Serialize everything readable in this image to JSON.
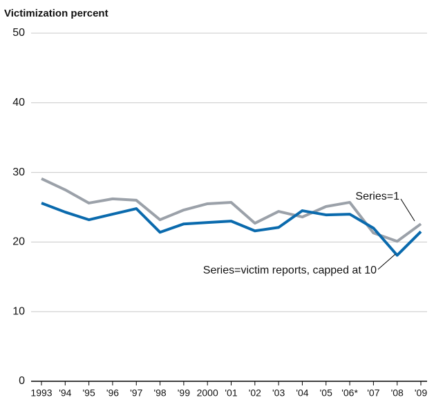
{
  "chart_data": {
    "type": "line",
    "title": "Victimization percent",
    "categories": [
      "1993",
      "'94",
      "'95",
      "'96",
      "'97",
      "'98",
      "'99",
      "2000",
      "'01",
      "'02",
      "'03",
      "'04",
      "'05",
      "'06*",
      "'07",
      "'08",
      "'09"
    ],
    "series": [
      {
        "name": "Series=1",
        "color": "#9ba1a9",
        "values": [
          29.1,
          27.5,
          25.6,
          26.2,
          26.0,
          23.2,
          24.6,
          25.5,
          25.7,
          22.7,
          24.4,
          23.6,
          25.1,
          25.7,
          21.3,
          20.1,
          22.6
        ]
      },
      {
        "name": "Series=victim reports, capped at 10",
        "color": "#0a6aad",
        "values": [
          25.6,
          24.3,
          23.2,
          24.0,
          24.8,
          21.4,
          22.6,
          22.8,
          23.0,
          21.6,
          22.1,
          24.5,
          23.9,
          24.0,
          22.0,
          18.1,
          21.5
        ]
      }
    ],
    "ylim": [
      0,
      50
    ],
    "yticks": [
      0,
      10,
      20,
      30,
      40,
      50
    ],
    "grid": true
  }
}
